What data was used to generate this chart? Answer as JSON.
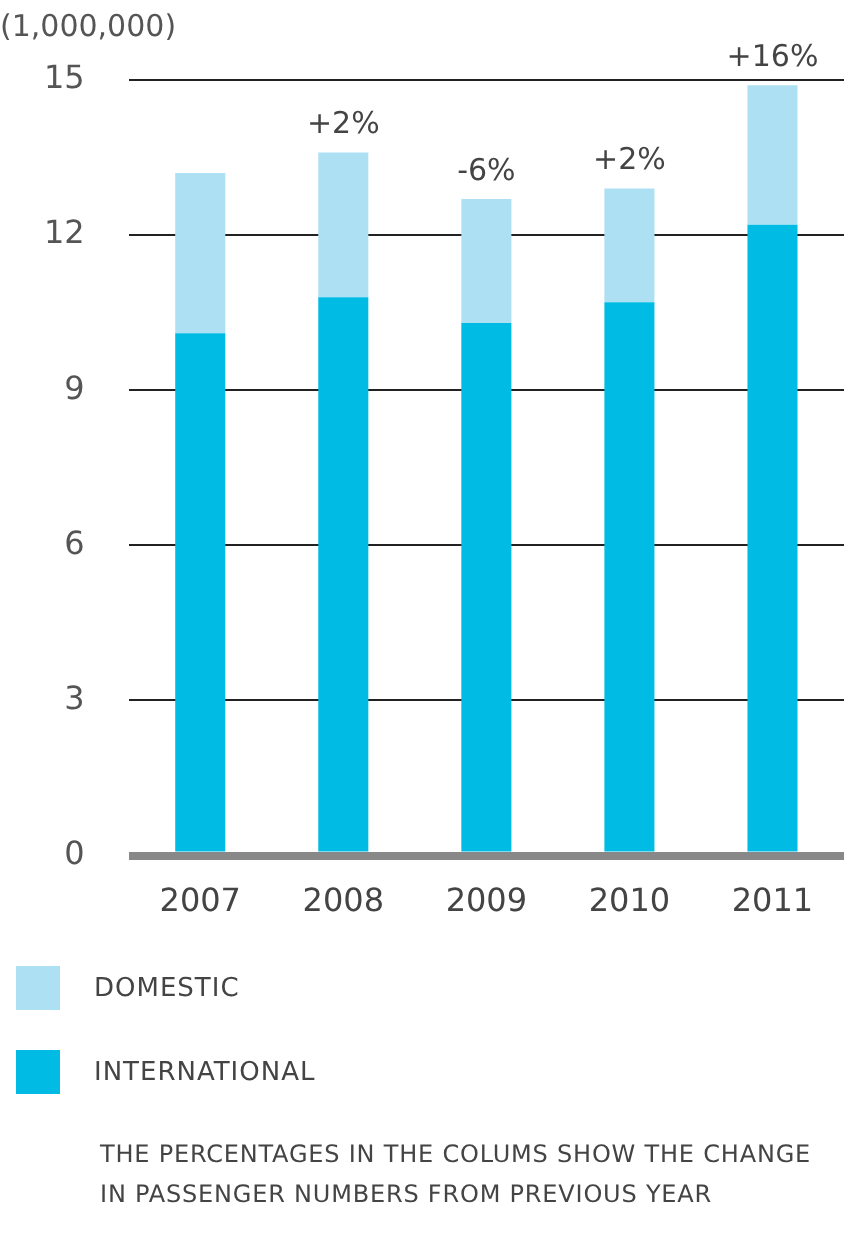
{
  "chart_data": {
    "type": "bar",
    "stacked": true,
    "ylabel": "(1,000,000)",
    "categories": [
      "2007",
      "2008",
      "2009",
      "2010",
      "2011"
    ],
    "series": [
      {
        "name": "INTERNATIONAL",
        "color": "#00bce4",
        "values": [
          10.1,
          10.8,
          10.3,
          10.7,
          12.2
        ]
      },
      {
        "name": "DOMESTIC",
        "color": "#aee0f3",
        "values": [
          3.1,
          2.8,
          2.4,
          2.2,
          2.7
        ]
      }
    ],
    "ylim": [
      0,
      15
    ],
    "yticks": [
      0,
      3,
      6,
      9,
      12,
      15
    ],
    "grid": "y",
    "legend": "bottom",
    "annotations": [
      {
        "text": "+2%",
        "x": "2008",
        "y": 13.6
      },
      {
        "text": "-6%",
        "x": "2009",
        "y": 12.7
      },
      {
        "text": "+2%",
        "x": "2010",
        "y": 12.9
      },
      {
        "text": "+16%",
        "x": "2011",
        "y": 14.9
      },
      "THE PERCENTAGES IN THE COLUMS SHOW THE CHANGE IN PASSENGER NUMBERS FROM PREVIOUS YEAR"
    ]
  }
}
